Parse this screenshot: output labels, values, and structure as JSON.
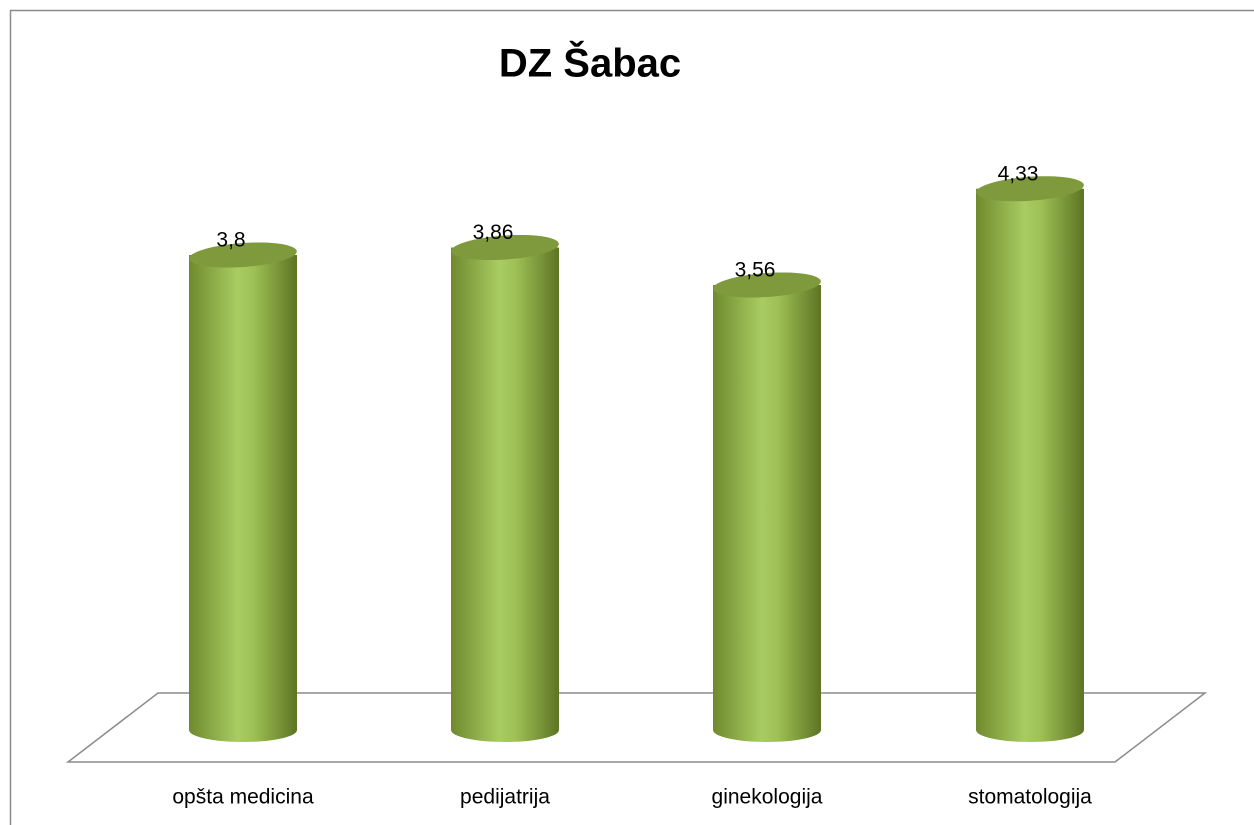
{
  "chart_data": {
    "type": "bar",
    "title": "DZ Šabac",
    "categories": [
      "opšta medicina",
      "pedijatrija",
      "ginekologija",
      "stomatologija"
    ],
    "values": [
      3.8,
      3.86,
      3.56,
      4.33
    ],
    "value_labels": [
      "3,8",
      "3,86",
      "3,56",
      "4,33"
    ],
    "color": "#9bbb59"
  }
}
